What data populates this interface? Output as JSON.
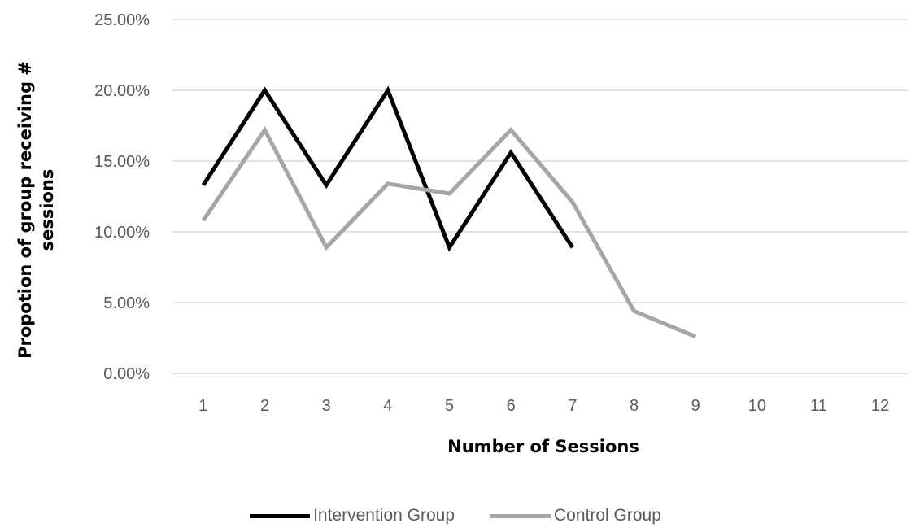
{
  "chart_data": {
    "type": "line",
    "xlabel": "Number of Sessions",
    "ylabel": "Propotion of group receiving #",
    "ylabel_line2": "sessions",
    "categories": [
      "1",
      "2",
      "3",
      "4",
      "5",
      "6",
      "7",
      "8",
      "9",
      "10",
      "11",
      "12"
    ],
    "ylim": [
      0,
      25
    ],
    "yticks": [
      0,
      5,
      10,
      15,
      20,
      25
    ],
    "ytick_labels": [
      "0.00%",
      "5.00%",
      "10.00%",
      "15.00%",
      "20.00%",
      "25.00%"
    ],
    "grid": true,
    "legend_position": "bottom",
    "series": [
      {
        "name": "Intervention Group",
        "color": "#000000",
        "values": [
          13.3,
          20.0,
          13.3,
          20.0,
          8.9,
          15.6,
          8.9,
          null,
          null,
          null,
          null,
          null
        ]
      },
      {
        "name": "Control Group",
        "color": "#a6a6a6",
        "values": [
          10.8,
          17.2,
          8.9,
          13.4,
          12.7,
          17.2,
          12.1,
          4.4,
          2.6,
          null,
          null,
          null
        ]
      }
    ]
  }
}
